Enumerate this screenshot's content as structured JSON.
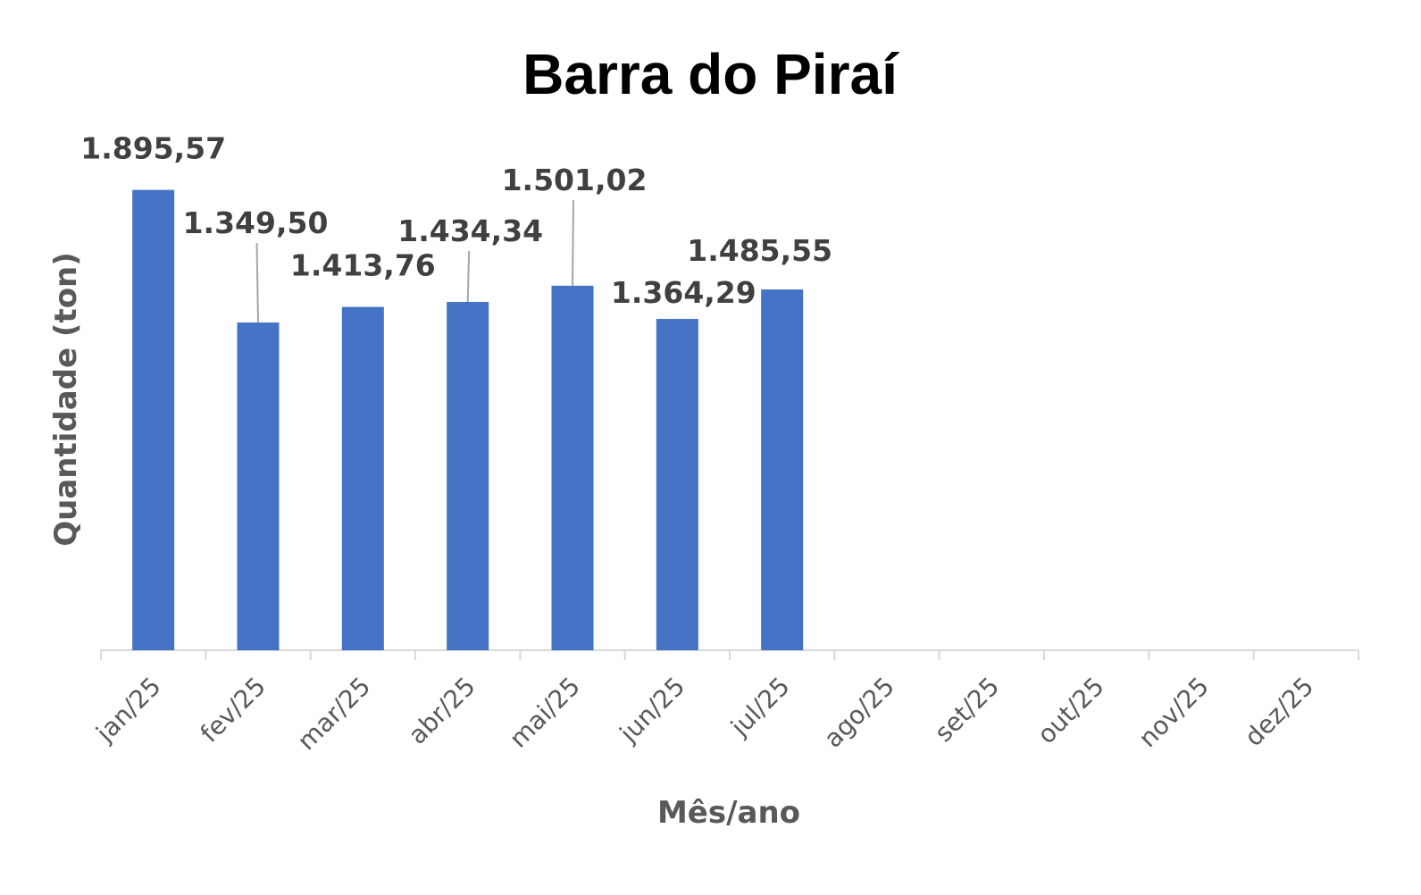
{
  "chart_data": {
    "type": "bar",
    "title": "Barra do Piraí",
    "xlabel": "Mês/ano",
    "ylabel": "Quantidade (ton)",
    "categories": [
      "jan/25",
      "fev/25",
      "mar/25",
      "abr/25",
      "mai/25",
      "jun/25",
      "jul/25",
      "ago/25",
      "set/25",
      "out/25",
      "nov/25",
      "dez/25"
    ],
    "values": [
      1895.57,
      1349.5,
      1413.76,
      1434.34,
      1501.02,
      1364.29,
      1485.55,
      null,
      null,
      null,
      null,
      null
    ],
    "data_labels": [
      "1.895,57",
      "1.349,50",
      "1.413,76",
      "1.434,34",
      "1.501,02",
      "1.364,29",
      "1.485,55",
      "",
      "",
      "",
      "",
      ""
    ],
    "ylim": [
      0,
      2000
    ],
    "grid": false,
    "legend": "none",
    "bar_color": "#4472C4",
    "axis_color": "#D9D9D9",
    "leader_line_color": "#A6A6A6"
  }
}
